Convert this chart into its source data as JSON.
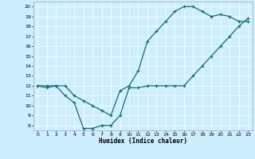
{
  "title": "",
  "xlabel": "Humidex (Indice chaleur)",
  "ylabel": "",
  "bg_color": "#cceeff",
  "line_color": "#1a6b6b",
  "xlim": [
    -0.5,
    23.5
  ],
  "ylim": [
    7.5,
    20.5
  ],
  "xticks": [
    0,
    1,
    2,
    3,
    4,
    5,
    6,
    7,
    8,
    9,
    10,
    11,
    12,
    13,
    14,
    15,
    16,
    17,
    18,
    19,
    20,
    21,
    22,
    23
  ],
  "yticks": [
    8,
    9,
    10,
    11,
    12,
    13,
    14,
    15,
    16,
    17,
    18,
    19,
    20
  ],
  "line1_x": [
    0,
    1,
    2,
    3,
    4,
    5,
    6,
    7,
    8,
    9,
    10,
    11,
    12,
    13,
    14,
    15,
    16,
    17,
    18,
    19,
    20,
    21,
    22,
    23
  ],
  "line1_y": [
    12,
    12,
    12,
    12,
    11,
    10.5,
    10,
    9.5,
    9,
    11.5,
    12,
    13.5,
    16.5,
    17.5,
    18.5,
    19.5,
    20,
    20,
    19.5,
    19,
    19.2,
    19,
    18.5,
    18.5
  ],
  "line2_x": [
    0,
    1,
    2,
    3,
    4,
    5,
    6,
    7,
    8,
    9,
    10,
    11,
    12,
    13,
    14,
    15,
    16,
    17,
    18,
    19,
    20,
    21,
    22,
    23
  ],
  "line2_y": [
    12,
    11.8,
    12,
    11,
    10.3,
    7.7,
    7.7,
    8,
    8,
    9,
    11.8,
    11.8,
    12,
    12,
    12,
    12,
    12,
    13,
    14,
    15,
    16,
    17,
    18,
    18.8
  ],
  "marker": "+",
  "markersize": 3,
  "linewidth": 0.9
}
